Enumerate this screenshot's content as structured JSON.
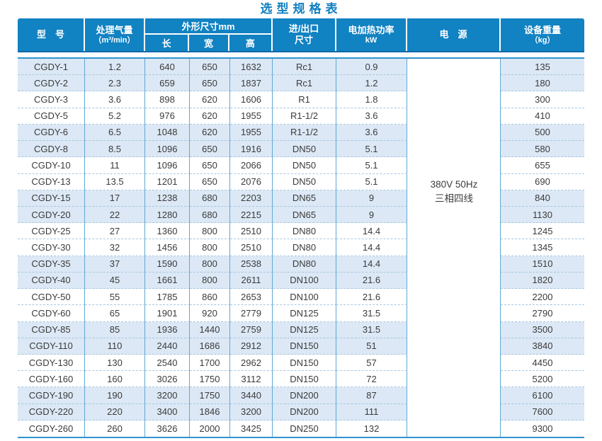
{
  "title": "选型规格表",
  "header": {
    "model": "型　号",
    "airflow": {
      "line1": "处理气量",
      "line2": "（m³/min）"
    },
    "dims": {
      "title": "外形尺寸mm",
      "length": "长",
      "width": "宽",
      "height": "高"
    },
    "inlet": {
      "line1": "进/出口",
      "line2": "尺寸"
    },
    "power": {
      "line1": "电加热功率",
      "line2": "kW"
    },
    "supply": "电　源",
    "weight": {
      "line1": "设备重量",
      "line2": "（kg）"
    }
  },
  "power_supply": {
    "line1": "380V 50Hz",
    "line2": "三相四线"
  },
  "colors": {
    "header_blue": "#1182c2",
    "header_bottom_line": "#0c6aa9",
    "row_shade_blue": "#dce8f5",
    "column_border_blue": "#5fa8d5",
    "dashed_line_blue": "#a6c7e2",
    "body_frame_blue": "#2f94cf",
    "title_blue": "#0f7fc0",
    "body_text": "#3b3b3b"
  },
  "rows": [
    {
      "model": "CGDY-1",
      "airflow": "1.2",
      "length": "640",
      "width": "650",
      "height": "1632",
      "inlet": "Rc1",
      "power": "0.9",
      "weight": "135"
    },
    {
      "model": "CGDY-2",
      "airflow": "2.3",
      "length": "659",
      "width": "650",
      "height": "1837",
      "inlet": "Rc1",
      "power": "1.2",
      "weight": "180"
    },
    {
      "model": "CGDY-3",
      "airflow": "3.6",
      "length": "898",
      "width": "620",
      "height": "1606",
      "inlet": "R1",
      "power": "1.8",
      "weight": "300"
    },
    {
      "model": "CGDY-5",
      "airflow": "5.2",
      "length": "976",
      "width": "620",
      "height": "1955",
      "inlet": "R1-1/2",
      "power": "3.6",
      "weight": "410"
    },
    {
      "model": "CGDY-6",
      "airflow": "6.5",
      "length": "1048",
      "width": "620",
      "height": "1955",
      "inlet": "R1-1/2",
      "power": "3.6",
      "weight": "500"
    },
    {
      "model": "CGDY-8",
      "airflow": "8.5",
      "length": "1096",
      "width": "650",
      "height": "1916",
      "inlet": "DN50",
      "power": "5.1",
      "weight": "580"
    },
    {
      "model": "CGDY-10",
      "airflow": "11",
      "length": "1096",
      "width": "650",
      "height": "2066",
      "inlet": "DN50",
      "power": "5.1",
      "weight": "655"
    },
    {
      "model": "CGDY-13",
      "airflow": "13.5",
      "length": "1201",
      "width": "650",
      "height": "2076",
      "inlet": "DN50",
      "power": "5.1",
      "weight": "690"
    },
    {
      "model": "CGDY-15",
      "airflow": "17",
      "length": "1238",
      "width": "680",
      "height": "2203",
      "inlet": "DN65",
      "power": "9",
      "weight": "840"
    },
    {
      "model": "CGDY-20",
      "airflow": "22",
      "length": "1280",
      "width": "680",
      "height": "2215",
      "inlet": "DN65",
      "power": "9",
      "weight": "1130"
    },
    {
      "model": "CGDY-25",
      "airflow": "27",
      "length": "1360",
      "width": "800",
      "height": "2510",
      "inlet": "DN80",
      "power": "14.4",
      "weight": "1245"
    },
    {
      "model": "CGDY-30",
      "airflow": "32",
      "length": "1456",
      "width": "800",
      "height": "2510",
      "inlet": "DN80",
      "power": "14.4",
      "weight": "1345"
    },
    {
      "model": "CGDY-35",
      "airflow": "37",
      "length": "1590",
      "width": "800",
      "height": "2538",
      "inlet": "DN80",
      "power": "14.4",
      "weight": "1510"
    },
    {
      "model": "CGDY-40",
      "airflow": "45",
      "length": "1661",
      "width": "800",
      "height": "2611",
      "inlet": "DN100",
      "power": "21.6",
      "weight": "1820"
    },
    {
      "model": "CGDY-50",
      "airflow": "55",
      "length": "1785",
      "width": "860",
      "height": "2653",
      "inlet": "DN100",
      "power": "21.6",
      "weight": "2200"
    },
    {
      "model": "CGDY-60",
      "airflow": "65",
      "length": "1901",
      "width": "920",
      "height": "2779",
      "inlet": "DN125",
      "power": "31.5",
      "weight": "2790"
    },
    {
      "model": "CGDY-85",
      "airflow": "85",
      "length": "1936",
      "width": "1440",
      "height": "2759",
      "inlet": "DN125",
      "power": "31.5",
      "weight": "3500"
    },
    {
      "model": "CGDY-110",
      "airflow": "110",
      "length": "2440",
      "width": "1686",
      "height": "2912",
      "inlet": "DN150",
      "power": "51",
      "weight": "3840"
    },
    {
      "model": "CGDY-130",
      "airflow": "130",
      "length": "2540",
      "width": "1700",
      "height": "2962",
      "inlet": "DN150",
      "power": "57",
      "weight": "4450"
    },
    {
      "model": "CGDY-160",
      "airflow": "160",
      "length": "3026",
      "width": "1750",
      "height": "3112",
      "inlet": "DN150",
      "power": "72",
      "weight": "5200"
    },
    {
      "model": "CGDY-190",
      "airflow": "190",
      "length": "3200",
      "width": "1750",
      "height": "3440",
      "inlet": "DN200",
      "power": "87",
      "weight": "6100"
    },
    {
      "model": "CGDY-220",
      "airflow": "220",
      "length": "3400",
      "width": "1846",
      "height": "3200",
      "inlet": "DN200",
      "power": "111",
      "weight": "7600"
    },
    {
      "model": "CGDY-260",
      "airflow": "260",
      "length": "3626",
      "width": "2000",
      "height": "3425",
      "inlet": "DN250",
      "power": "132",
      "weight": "9300"
    }
  ]
}
